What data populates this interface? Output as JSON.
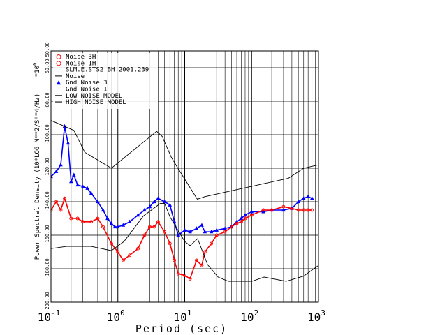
{
  "chart_data": {
    "type": "line",
    "xlabel": "Period (sec)",
    "ylabel": "Power Spectral Density (10*LOG M**2/S**4/Hz)",
    "y_multiplier": "*10",
    "y_multiplier_exp": "0",
    "xscale": "log",
    "xlim": [
      0.1,
      1000
    ],
    "ylim": [
      -200,
      -50
    ],
    "grid": true,
    "legend_position": "top-left",
    "x_ticks": [
      {
        "base": "10",
        "exp": "-1",
        "value": 0.1
      },
      {
        "base": "10",
        "exp": "0",
        "value": 1
      },
      {
        "base": "10",
        "exp": "1",
        "value": 10
      },
      {
        "base": "10",
        "exp": "2",
        "value": 100
      },
      {
        "base": "10",
        "exp": "3",
        "value": 1000
      }
    ],
    "y_ticks": [
      {
        "label": "-50.00",
        "value": -50
      },
      {
        "label": "-60.00",
        "value": -60
      },
      {
        "label": "-80.00",
        "value": -80
      },
      {
        "label": "-100.00",
        "value": -100
      },
      {
        "label": "-120.00",
        "value": -120
      },
      {
        "label": "-140.00",
        "value": -140
      },
      {
        "label": "-160.00",
        "value": -160
      },
      {
        "label": "-180.00",
        "value": -180
      },
      {
        "label": "-200.00",
        "value": -200
      }
    ],
    "legend": [
      {
        "label": "Noise 3H",
        "symbol": "circle",
        "color": "#ff0000"
      },
      {
        "label": "Noise 1H",
        "symbol": "circle",
        "color": "#ff0000"
      },
      {
        "label": "SLM.E.STS2 BH  2001.239",
        "symbol": "none",
        "color": "#000000"
      },
      {
        "label": "Noise",
        "symbol": "line",
        "color": "#000000"
      },
      {
        "label": "Gnd Noise 3",
        "symbol": "triangle",
        "color": "#0000ff"
      },
      {
        "label": "Gnd Noise 1",
        "symbol": "none",
        "color": "#0000ff"
      },
      {
        "label": "LOW NOISE MODEL",
        "symbol": "line",
        "color": "#000000"
      },
      {
        "label": "HIGH NOISE MODEL",
        "symbol": "line",
        "color": "#000000"
      }
    ],
    "series": [
      {
        "name": "Gnd Noise 3",
        "color": "#0000ff",
        "marker": "triangle",
        "x": [
          0.1,
          0.12,
          0.14,
          0.16,
          0.18,
          0.2,
          0.22,
          0.25,
          0.3,
          0.35,
          0.4,
          0.5,
          0.6,
          0.7,
          0.8,
          0.9,
          1.0,
          1.2,
          1.5,
          2.0,
          2.5,
          3.0,
          3.5,
          4.0,
          5.0,
          6.0,
          7.0,
          8.0,
          10,
          12,
          15,
          18,
          20,
          25,
          30,
          40,
          50,
          60,
          70,
          80,
          100,
          150,
          200,
          300,
          400,
          500,
          600,
          700,
          800
        ],
        "y": [
          -125,
          -122,
          -118,
          -95,
          -105,
          -128,
          -124,
          -130,
          -131,
          -132,
          -135,
          -140,
          -145,
          -150,
          -153,
          -155,
          -155,
          -154,
          -152,
          -148,
          -145,
          -143,
          -140,
          -138,
          -140,
          -142,
          -152,
          -160,
          -157,
          -158,
          -156,
          -154,
          -158,
          -158,
          -157,
          -156,
          -155,
          -152,
          -150,
          -148,
          -146,
          -146,
          -145,
          -145,
          -144,
          -140,
          -138,
          -137,
          -138
        ]
      },
      {
        "name": "Noise 3H",
        "color": "#ff0000",
        "marker": "circle",
        "x": [
          0.1,
          0.12,
          0.14,
          0.16,
          0.2,
          0.25,
          0.3,
          0.4,
          0.5,
          0.6,
          0.8,
          1.0,
          1.2,
          1.5,
          2.0,
          2.5,
          3.0,
          3.5,
          4.0,
          5.0,
          6.0,
          7.0,
          8.0,
          10,
          12,
          15,
          18,
          20,
          25,
          30,
          40,
          50,
          60,
          70,
          80,
          100,
          150,
          200,
          300,
          400,
          500,
          600,
          700,
          800
        ],
        "y": [
          -145,
          -140,
          -145,
          -138,
          -150,
          -150,
          -152,
          -152,
          -150,
          -155,
          -165,
          -170,
          -175,
          -172,
          -168,
          -160,
          -155,
          -155,
          -152,
          -158,
          -165,
          -175,
          -183,
          -184,
          -186,
          -175,
          -178,
          -170,
          -165,
          -160,
          -158,
          -155,
          -153,
          -152,
          -150,
          -148,
          -145,
          -145,
          -143,
          -144,
          -145,
          -145,
          -145,
          -145
        ]
      },
      {
        "name": "LOW NOISE MODEL",
        "color": "#000000",
        "marker": "none",
        "x": [
          0.1,
          0.17,
          0.4,
          0.8,
          1.24,
          2.4,
          4.3,
          5.0,
          6.0,
          10,
          12,
          15.6,
          21.9,
          31.6,
          45,
          70,
          101,
          154,
          328,
          600,
          1000
        ],
        "y": [
          -168,
          -166.7,
          -166.7,
          -169.2,
          -163.7,
          -148.6,
          -141.1,
          -141.1,
          -149,
          -163.8,
          -166.2,
          -162.1,
          -177.5,
          -185,
          -187.5,
          -187.5,
          -187.5,
          -185,
          -187.5,
          -184.4,
          -178
        ]
      },
      {
        "name": "HIGH NOISE MODEL",
        "color": "#000000",
        "marker": "none",
        "x": [
          0.1,
          0.22,
          0.32,
          0.8,
          3.8,
          4.6,
          6.3,
          7.9,
          15.4,
          20,
          354.8,
          600,
          1000
        ],
        "y": [
          -91.5,
          -97.4,
          -110.5,
          -120,
          -98,
          -101,
          -113.5,
          -120,
          -138.5,
          -137,
          -126,
          -120,
          -118
        ]
      }
    ]
  }
}
